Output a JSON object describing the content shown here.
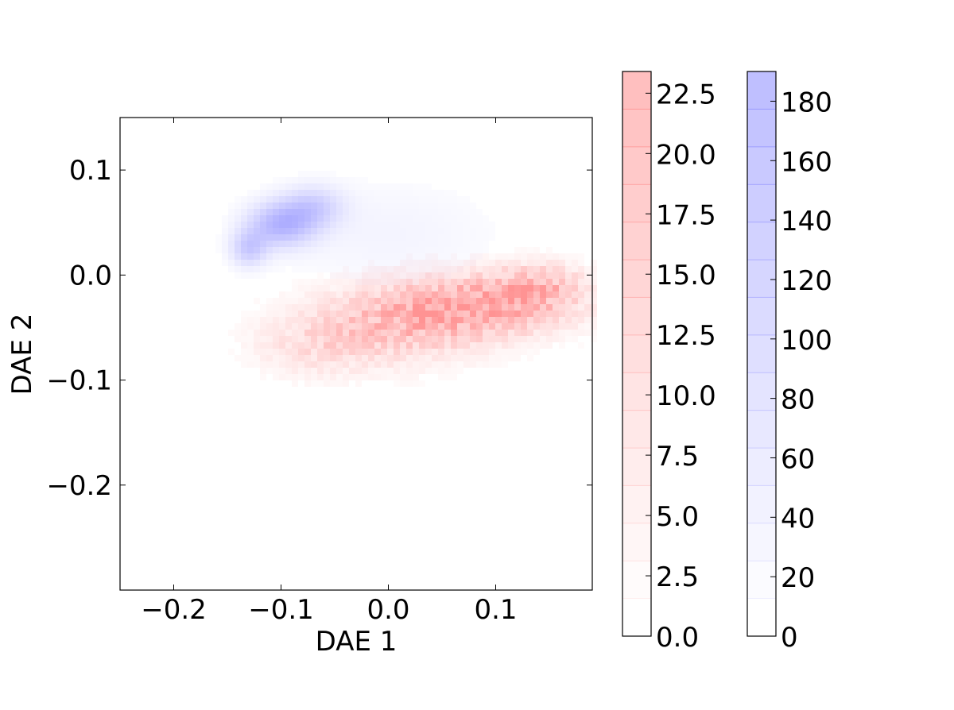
{
  "chart_data": {
    "type": "heatmap",
    "title": "",
    "xlabel": "DAE 1",
    "ylabel": "DAE 2",
    "xlim": [
      -0.25,
      0.19
    ],
    "ylim": [
      -0.3,
      0.15
    ],
    "x_ticks": [
      {
        "value": -0.2,
        "label": "−0.2"
      },
      {
        "value": -0.1,
        "label": "−0.1"
      },
      {
        "value": 0.0,
        "label": "0.0"
      },
      {
        "value": 0.1,
        "label": "0.1"
      }
    ],
    "y_ticks": [
      {
        "value": 0.1,
        "label": "0.1"
      },
      {
        "value": 0.0,
        "label": "0.0"
      },
      {
        "value": -0.1,
        "label": "−0.1"
      },
      {
        "value": -0.2,
        "label": "−0.2"
      }
    ],
    "grid": false,
    "series": [
      {
        "color": "#8080ff",
        "density_centers": [
          {
            "x": -0.1,
            "y": 0.048,
            "sx": 0.022,
            "sy": 0.015,
            "w": 1.0
          },
          {
            "x": -0.13,
            "y": 0.025,
            "sx": 0.012,
            "sy": 0.012,
            "w": 0.7
          },
          {
            "x": -0.07,
            "y": 0.065,
            "sx": 0.02,
            "sy": 0.014,
            "w": 0.6
          },
          {
            "x": 0.0,
            "y": 0.04,
            "sx": 0.07,
            "sy": 0.035,
            "w": 0.16
          }
        ],
        "colorbar": {
          "max": 190,
          "ticks": [
            0,
            20,
            40,
            60,
            80,
            100,
            120,
            140,
            160,
            180
          ],
          "tick_labels": [
            "0",
            "20",
            "40",
            "60",
            "80",
            "100",
            "120",
            "140",
            "160",
            "180"
          ],
          "levels": 15
        }
      },
      {
        "color": "#ff8080",
        "density_centers": [
          {
            "x": 0.08,
            "y": -0.03,
            "sx": 0.06,
            "sy": 0.02,
            "w": 1.0
          },
          {
            "x": 0.14,
            "y": -0.01,
            "sx": 0.03,
            "sy": 0.015,
            "w": 0.6
          },
          {
            "x": 0.0,
            "y": -0.05,
            "sx": 0.06,
            "sy": 0.025,
            "w": 0.55
          },
          {
            "x": -0.07,
            "y": -0.07,
            "sx": 0.04,
            "sy": 0.02,
            "w": 0.25
          }
        ],
        "colorbar": {
          "max": 23.4,
          "ticks": [
            0.0,
            2.5,
            5.0,
            7.5,
            10.0,
            12.5,
            15.0,
            17.5,
            20.0,
            22.5
          ],
          "tick_labels": [
            "0.0",
            "2.5",
            "5.0",
            "7.5",
            "10.0",
            "12.5",
            "15.0",
            "17.5",
            "20.0",
            "22.5"
          ],
          "levels": 15
        }
      }
    ]
  }
}
